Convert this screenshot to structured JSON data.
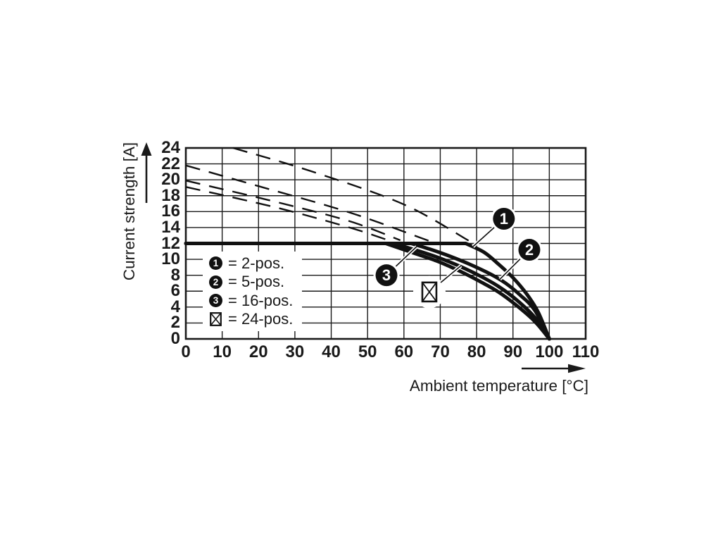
{
  "colors": {
    "ink": "#1a1a1a",
    "curve": "#111111",
    "background": "#ffffff"
  },
  "axes": {
    "x": {
      "label": "Ambient temperature [°C]",
      "ticks": [
        "0",
        "10",
        "20",
        "30",
        "40",
        "50",
        "60",
        "70",
        "80",
        "90",
        "100",
        "110"
      ]
    },
    "y": {
      "label": "Current strength [A]",
      "ticks": [
        "24",
        "22",
        "20",
        "18",
        "16",
        "14",
        "12",
        "10",
        "8",
        "6",
        "4",
        "2",
        "0"
      ]
    }
  },
  "legend": {
    "items": [
      {
        "symbol": "1",
        "label": "= 2-pos."
      },
      {
        "symbol": "2",
        "label": "= 5-pos."
      },
      {
        "symbol": "3",
        "label": "= 16-pos."
      },
      {
        "symbol": "⊠",
        "label": "= 24-pos."
      }
    ]
  },
  "chart_data": {
    "type": "line",
    "title": "",
    "xlabel": "Ambient temperature [°C]",
    "ylabel": "Current strength [A]",
    "xlim": [
      0,
      110
    ],
    "ylim": [
      0,
      24
    ],
    "x_ticks": [
      0,
      10,
      20,
      30,
      40,
      50,
      60,
      70,
      80,
      90,
      100,
      110
    ],
    "y_ticks": [
      0,
      2,
      4,
      6,
      8,
      10,
      12,
      14,
      16,
      18,
      20,
      22,
      24
    ],
    "grid": true,
    "current_limit_A": 12,
    "series": [
      {
        "name": "2-pos.",
        "marker": "1",
        "style": "solid",
        "points": [
          [
            0,
            12
          ],
          [
            40,
            12
          ],
          [
            70,
            12
          ],
          [
            77,
            12
          ],
          [
            82,
            10.9
          ],
          [
            86,
            9.4
          ],
          [
            90,
            7.7
          ],
          [
            94,
            5.5
          ],
          [
            97,
            3.3
          ],
          [
            100,
            0
          ]
        ]
      },
      {
        "name": "5-pos.",
        "marker": "2",
        "style": "solid",
        "points": [
          [
            0,
            12
          ],
          [
            40,
            12
          ],
          [
            58,
            12
          ],
          [
            62,
            12
          ],
          [
            67,
            11.3
          ],
          [
            72,
            10.5
          ],
          [
            78,
            9.4
          ],
          [
            84,
            8.1
          ],
          [
            88,
            7.0
          ],
          [
            92,
            5.5
          ],
          [
            96,
            3.6
          ],
          [
            100,
            0
          ]
        ]
      },
      {
        "name": "16-pos.",
        "marker": "3",
        "style": "solid",
        "points": [
          [
            0,
            12
          ],
          [
            40,
            12
          ],
          [
            54,
            12
          ],
          [
            57,
            12
          ],
          [
            63,
            11.2
          ],
          [
            69,
            10.3
          ],
          [
            75,
            9.2
          ],
          [
            81,
            7.9
          ],
          [
            86,
            6.6
          ],
          [
            91,
            4.9
          ],
          [
            96,
            2.7
          ],
          [
            100,
            0
          ]
        ]
      },
      {
        "name": "24-pos.",
        "marker": "box-x",
        "style": "solid",
        "points": [
          [
            0,
            12
          ],
          [
            40,
            12
          ],
          [
            52,
            12
          ],
          [
            55,
            12
          ],
          [
            62,
            10.9
          ],
          [
            69,
            9.8
          ],
          [
            75,
            8.6
          ],
          [
            81,
            7.2
          ],
          [
            86,
            5.9
          ],
          [
            91,
            4.2
          ],
          [
            96,
            2.2
          ],
          [
            100,
            0
          ]
        ]
      }
    ],
    "dashed_series": [
      {
        "name": "2-pos. without 12 A limit",
        "points": [
          [
            13,
            24
          ],
          [
            35,
            21.0
          ],
          [
            60,
            16.9
          ],
          [
            78,
            12.3
          ]
        ]
      },
      {
        "name": "5-pos. without 12 A limit",
        "points": [
          [
            0,
            21.8
          ],
          [
            20,
            19.2
          ],
          [
            45,
            15.9
          ],
          [
            67,
            12.3
          ]
        ]
      },
      {
        "name": "16-pos. without 12 A limit",
        "points": [
          [
            0,
            19.9
          ],
          [
            25,
            17.2
          ],
          [
            45,
            14.8
          ],
          [
            59,
            12.4
          ]
        ]
      },
      {
        "name": "24-pos. without 12 A limit",
        "points": [
          [
            0,
            19.1
          ],
          [
            25,
            16.5
          ],
          [
            45,
            14.0
          ],
          [
            57,
            12.2
          ]
        ]
      }
    ],
    "annotations": [
      {
        "label": "1",
        "type": "badge",
        "at": [
          87.5,
          15.1
        ],
        "points_to": [
          79,
          11.6
        ]
      },
      {
        "label": "2",
        "type": "badge",
        "at": [
          94.5,
          11.2
        ],
        "points_to": [
          86.4,
          7.5
        ]
      },
      {
        "label": "3",
        "type": "badge",
        "at": [
          55.2,
          8.0
        ],
        "points_to": [
          63.5,
          11.6
        ]
      },
      {
        "label": "⊠",
        "type": "box-x",
        "at": [
          67,
          5.9
        ],
        "points_to": [
          75.7,
          9.2
        ]
      }
    ]
  }
}
